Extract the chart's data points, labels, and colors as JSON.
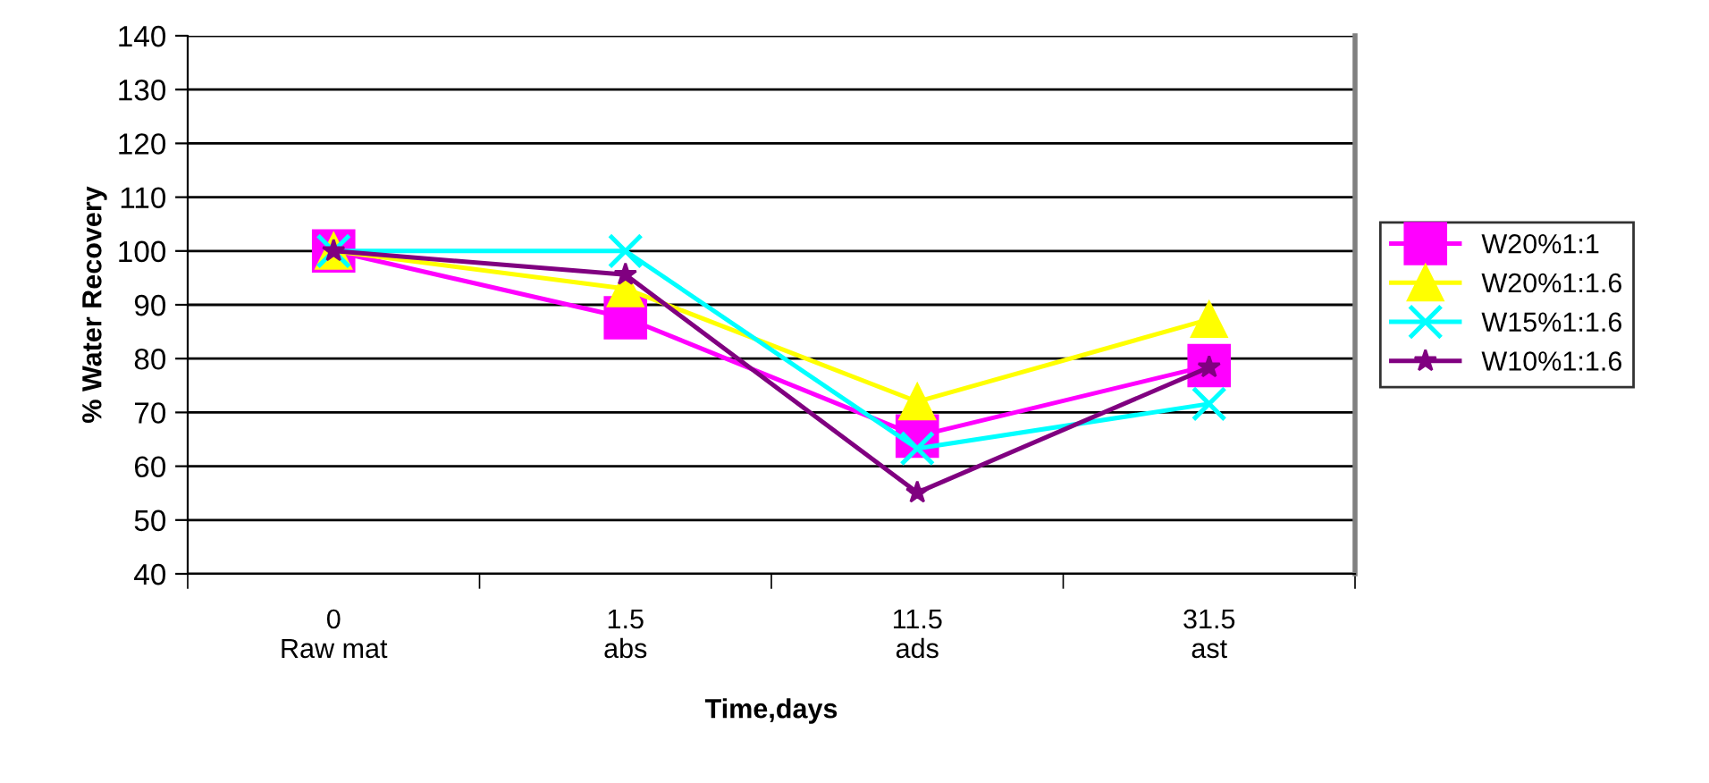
{
  "chart_data": {
    "type": "line",
    "xlabel": "Time,days",
    "ylabel": "% Water Recovery",
    "categories": [
      "0\nRaw mat",
      "1.5\nabs",
      "11.5\nads",
      "31.5\nast"
    ],
    "series": [
      {
        "name": "W20%1:1",
        "color": "#ff00ff",
        "marker": "square",
        "values": [
          100,
          87.6,
          65.6,
          78.7
        ]
      },
      {
        "name": "W20%1:1.6",
        "color": "#ffff00",
        "marker": "triangle",
        "values": [
          100,
          93,
          72,
          87.3
        ]
      },
      {
        "name": "W15%1:1.6",
        "color": "#00ffff",
        "marker": "cross",
        "values": [
          100,
          100,
          63.3,
          71.6
        ]
      },
      {
        "name": "W10%1:1.6",
        "color": "#800080",
        "marker": "star",
        "values": [
          100,
          95.6,
          55.1,
          78.4
        ]
      }
    ],
    "ylim": [
      40,
      140
    ],
    "yticks": [
      40,
      50,
      60,
      70,
      80,
      90,
      100,
      110,
      120,
      130,
      140
    ],
    "grid": "y",
    "legend": "right",
    "line_style": "solid"
  }
}
